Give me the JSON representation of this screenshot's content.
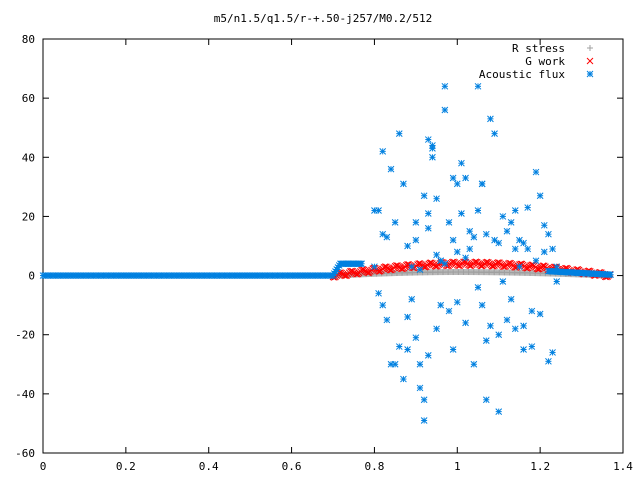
{
  "chart_data": {
    "type": "scatter",
    "title": "m5/n1.5/q1.5/r-+.50-j257/M0.2/512",
    "xlabel": "",
    "ylabel": "",
    "xlim": [
      0,
      1.4
    ],
    "ylim": [
      -60,
      80
    ],
    "x_ticks": [
      "0",
      "0.2",
      "0.4",
      "0.6",
      "0.8",
      "1",
      "1.2",
      "1.4"
    ],
    "y_ticks": [
      "80",
      "60",
      "40",
      "20",
      "0",
      "-20",
      "-40",
      "-60"
    ],
    "grid": false,
    "legend_position": "top-right",
    "series": [
      {
        "name": "R stress",
        "marker": "plus",
        "color": "#a0a0a0",
        "segments": [
          {
            "x_range": [
              0.7,
              1.37
            ],
            "shape": "hump",
            "peak_x": 1.0,
            "peak_y": 1.2
          }
        ]
      },
      {
        "name": "G work",
        "marker": "cross",
        "color": "#ff0000",
        "segments": [
          {
            "x_range": [
              0.7,
              1.37
            ],
            "shape": "hump",
            "peak_x": 1.02,
            "peak_y": 4.0
          }
        ]
      },
      {
        "name": "Acoustic flux",
        "marker": "star",
        "color": "#0080e0",
        "baseline": {
          "x_range": [
            0.0,
            0.7
          ],
          "y": 0
        },
        "bump": {
          "x_range": [
            0.7,
            0.77
          ],
          "y": 4
        },
        "tail": {
          "x_range": [
            1.22,
            1.37
          ],
          "y_start": 1.5,
          "y_end": 0.3
        },
        "points": [
          [
            0.8,
            22
          ],
          [
            0.81,
            22
          ],
          [
            0.82,
            42
          ],
          [
            0.82,
            14
          ],
          [
            0.83,
            13
          ],
          [
            0.84,
            36
          ],
          [
            0.8,
            3
          ],
          [
            0.81,
            -6
          ],
          [
            0.82,
            -10
          ],
          [
            0.83,
            -15
          ],
          [
            0.84,
            -30
          ],
          [
            0.85,
            -30
          ],
          [
            0.85,
            18
          ],
          [
            0.86,
            48
          ],
          [
            0.86,
            -24
          ],
          [
            0.87,
            31
          ],
          [
            0.87,
            -35
          ],
          [
            0.88,
            -25
          ],
          [
            0.88,
            10
          ],
          [
            0.89,
            3
          ],
          [
            0.89,
            -8
          ],
          [
            0.9,
            12
          ],
          [
            0.9,
            18
          ],
          [
            0.91,
            -30
          ],
          [
            0.91,
            -38
          ],
          [
            0.92,
            -42
          ],
          [
            0.92,
            -49
          ],
          [
            0.92,
            27
          ],
          [
            0.93,
            46
          ],
          [
            0.93,
            16
          ],
          [
            0.93,
            -27
          ],
          [
            0.94,
            44
          ],
          [
            0.94,
            43
          ],
          [
            0.94,
            40
          ],
          [
            0.95,
            26
          ],
          [
            0.95,
            7
          ],
          [
            0.95,
            -18
          ],
          [
            0.96,
            5
          ],
          [
            0.97,
            64
          ],
          [
            0.97,
            56
          ],
          [
            0.98,
            18
          ],
          [
            0.98,
            -12
          ],
          [
            0.99,
            33
          ],
          [
            0.99,
            -25
          ],
          [
            1.0,
            31
          ],
          [
            1.0,
            8
          ],
          [
            1.0,
            -9
          ],
          [
            1.01,
            38
          ],
          [
            1.01,
            21
          ],
          [
            1.02,
            33
          ],
          [
            1.02,
            -16
          ],
          [
            1.03,
            9
          ],
          [
            1.04,
            13
          ],
          [
            1.04,
            -30
          ],
          [
            1.05,
            64
          ],
          [
            1.05,
            22
          ],
          [
            1.06,
            31
          ],
          [
            1.06,
            31
          ],
          [
            1.06,
            -10
          ],
          [
            1.07,
            14
          ],
          [
            1.07,
            -42
          ],
          [
            1.08,
            53
          ],
          [
            1.08,
            -17
          ],
          [
            1.09,
            48
          ],
          [
            1.09,
            12
          ],
          [
            1.1,
            -20
          ],
          [
            1.1,
            -46
          ],
          [
            1.11,
            -2
          ],
          [
            1.11,
            20
          ],
          [
            1.12,
            15
          ],
          [
            1.12,
            -15
          ],
          [
            1.13,
            18
          ],
          [
            1.13,
            -8
          ],
          [
            1.14,
            22
          ],
          [
            1.14,
            -18
          ],
          [
            1.15,
            3
          ],
          [
            1.15,
            12
          ],
          [
            1.16,
            11
          ],
          [
            1.16,
            -25
          ],
          [
            1.16,
            -17
          ],
          [
            1.17,
            9
          ],
          [
            1.17,
            23
          ],
          [
            1.18,
            -12
          ],
          [
            1.18,
            -24
          ],
          [
            1.19,
            35
          ],
          [
            1.19,
            5
          ],
          [
            1.2,
            27
          ],
          [
            1.2,
            -13
          ],
          [
            1.21,
            17
          ],
          [
            1.21,
            8
          ],
          [
            1.22,
            14
          ],
          [
            1.22,
            -29
          ],
          [
            1.23,
            -26
          ],
          [
            1.23,
            9
          ],
          [
            1.24,
            3
          ],
          [
            1.24,
            -2
          ],
          [
            0.96,
            5
          ],
          [
            0.97,
            4
          ],
          [
            1.02,
            6
          ],
          [
            0.91,
            2
          ],
          [
            1.05,
            -4
          ],
          [
            0.99,
            12
          ],
          [
            0.93,
            21
          ],
          [
            1.1,
            11
          ],
          [
            1.14,
            9
          ],
          [
            0.88,
            -14
          ],
          [
            0.9,
            -21
          ],
          [
            0.96,
            -10
          ],
          [
            1.03,
            15
          ],
          [
            1.07,
            -22
          ]
        ]
      }
    ]
  }
}
